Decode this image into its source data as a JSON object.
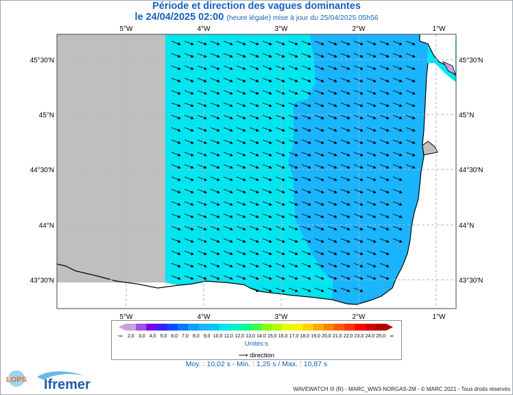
{
  "header": {
    "title": "Période et direction des vagues dominantes",
    "date_line": "le 24/04/2025 02:00",
    "date_suffix": "(heure légale) mise à jour du 25/04/2025 05h56"
  },
  "map": {
    "lon_labels": [
      "5°W",
      "4°W",
      "3°W",
      "2°W",
      "1°W"
    ],
    "lat_labels": [
      "45°30'N",
      "45°N",
      "44°30'N",
      "44°N",
      "43°30'N"
    ],
    "wave_direction": "ESE",
    "colors": {
      "land": "#ffffff",
      "no_data": "#bfbfbf",
      "period_10_11": "#00e5f0",
      "period_9_10": "#1ab4ff",
      "grid": "#a8b4dc"
    }
  },
  "legend": {
    "ticks": [
      "2,0",
      "3,0",
      "4,0",
      "5,0",
      "6,0",
      "7,0",
      "8,0",
      "9,0",
      "10,0",
      "11,0",
      "12,0",
      "13,0",
      "14,0",
      "15,0",
      "16,0",
      "17,0",
      "18,0",
      "19,0",
      "20,0",
      "21,0",
      "22,0",
      "23,0",
      "24,0",
      "25,0"
    ],
    "low_symbol": "-∞",
    "high_symbol": "∞",
    "unit": "Unités:s",
    "colors": [
      "#c8a0dc",
      "#a050e6",
      "#7800f0",
      "#3c1eff",
      "#0050ff",
      "#0078ff",
      "#0aa0ff",
      "#1ab4ff",
      "#00c8ff",
      "#00e5f0",
      "#00f0c8",
      "#00ff9b",
      "#3cff50",
      "#82ff00",
      "#b4ff00",
      "#e6ff00",
      "#fff000",
      "#ffd200",
      "#ffaa00",
      "#ff8200",
      "#ff5a00",
      "#ff3200",
      "#ff0000",
      "#d20000",
      "#b40000"
    ]
  },
  "direction_legend": "direction",
  "stats": "Moy. : 10,02 s  -  Min. : 1,25 s / Max. : 10,87 s",
  "credit": "WAVEWATCH III (R) - MARC_WW3-NORGAS-2M - © MARC 2021 - Tous droits réservés",
  "logos": {
    "lops": "LOPS",
    "ifremer": "Ifremer"
  }
}
